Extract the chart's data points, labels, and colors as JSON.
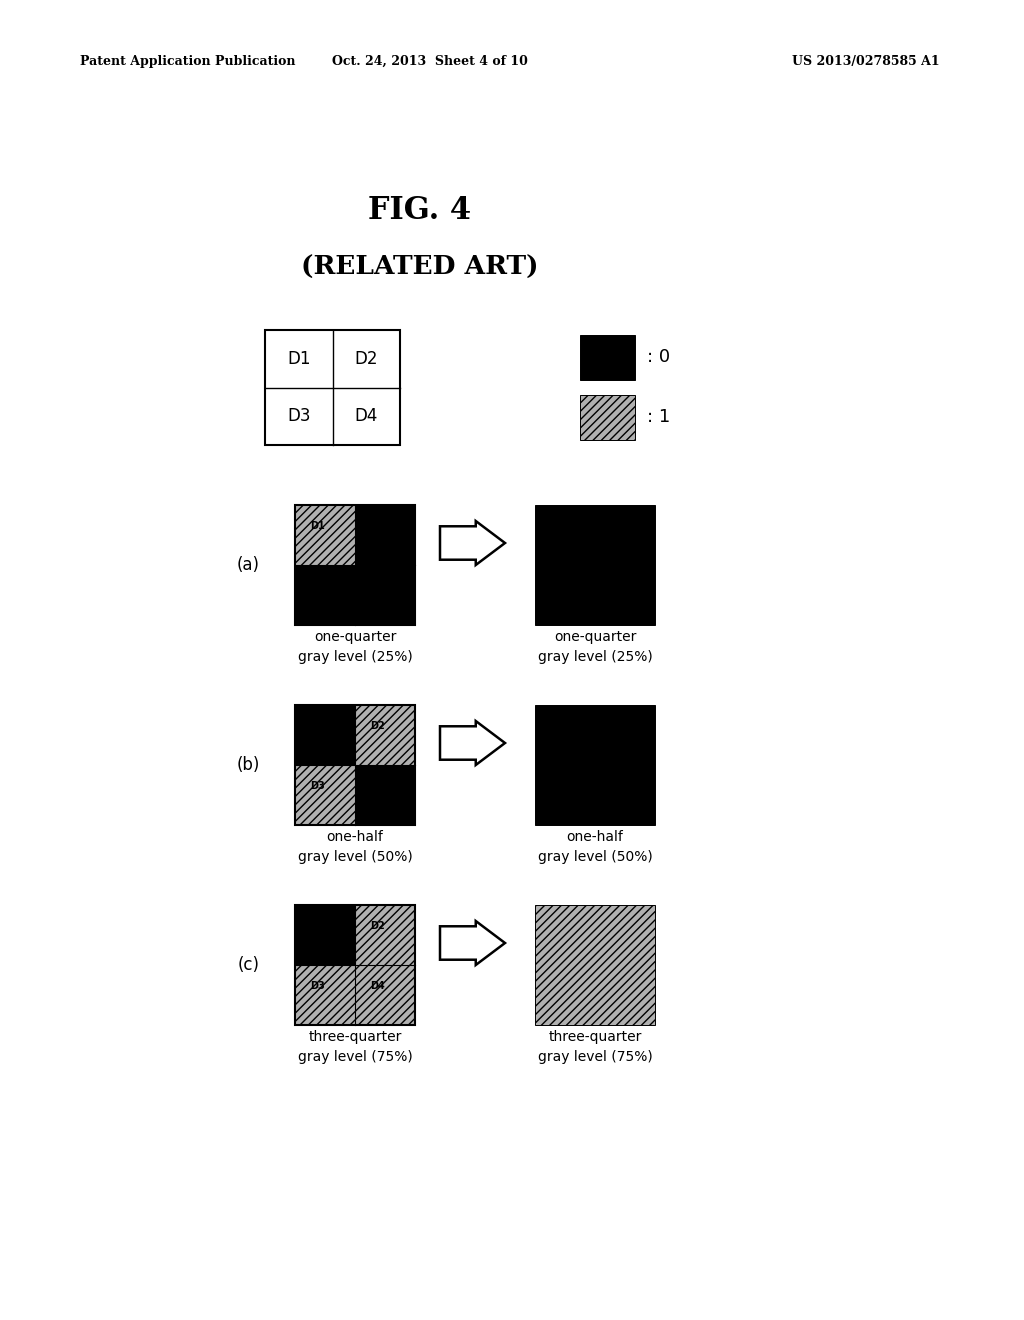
{
  "title": "FIG. 4",
  "subtitle": "(RELATED ART)",
  "header_left": "Patent Application Publication",
  "header_center": "Oct. 24, 2013  Sheet 4 of 10",
  "header_right": "US 2013/0278585 A1",
  "bg_color": "#ffffff",
  "label_a": "(a)",
  "label_b": "(b)",
  "label_c": "(c)",
  "caption_a_left": "one-quarter\ngray level (25%)",
  "caption_a_right": "one-quarter\ngray level (25%)",
  "caption_b_left": "one-half\ngray level (50%)",
  "caption_b_right": "one-half\ngray level (50%)",
  "caption_c_left": "three-quarter\ngray level (75%)",
  "caption_c_right": "three-quarter\ngray level (75%)",
  "legend_0": ": 0",
  "legend_1": ": 1"
}
